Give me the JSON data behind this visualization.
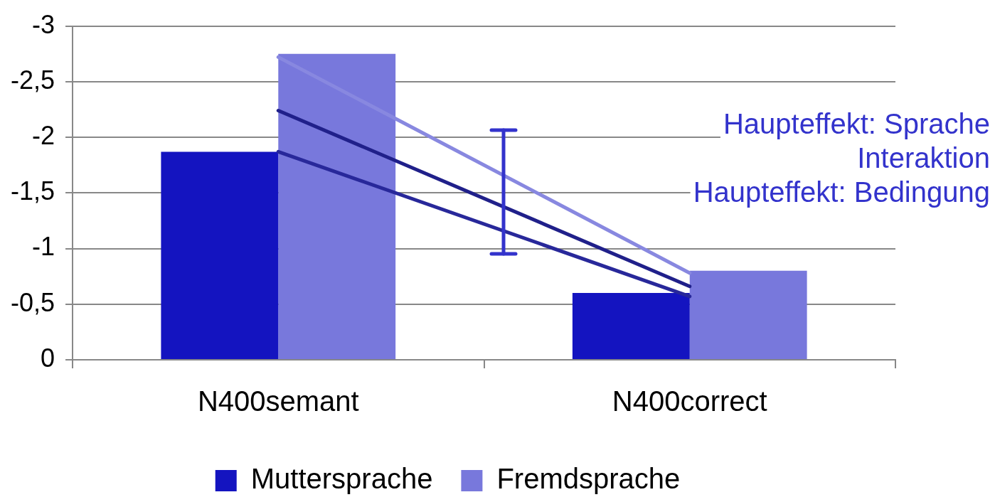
{
  "chart_data": {
    "type": "bar",
    "categories": [
      "N400semant",
      "N400correct"
    ],
    "series": [
      {
        "name": "Muttersprache",
        "color": "#1414c0",
        "values": [
          -1.87,
          -0.6
        ]
      },
      {
        "name": "Fremdsprache",
        "color": "#7878dc",
        "values": [
          -2.75,
          -0.8
        ]
      },
      {
        "type": "line",
        "color": "#8888e0",
        "values": [
          -2.72,
          -0.78
        ]
      },
      {
        "type": "line",
        "color": "#20208a",
        "values": [
          -2.24,
          -0.66
        ]
      },
      {
        "type": "line",
        "color": "#28289a",
        "values": [
          -1.87,
          -0.57
        ]
      }
    ],
    "ylim": [
      0,
      -3
    ],
    "yticks": [
      0,
      {
        "value": -0.5,
        "label": "-0,5"
      },
      -1,
      {
        "value": -1.5,
        "label": "-1,5"
      },
      -2,
      {
        "value": -2.5,
        "label": "-2,5"
      },
      -3
    ],
    "annotations": [
      "Haupteffekt: Sprache",
      "Interaktion",
      "Haupteffekt: Bedingung"
    ],
    "grid": "y",
    "legend": "bottom",
    "marker": "none"
  }
}
